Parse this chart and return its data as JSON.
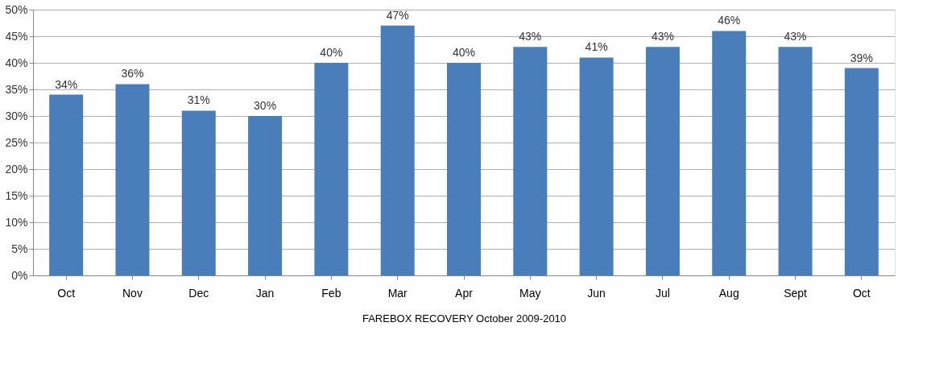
{
  "chart_data": {
    "type": "bar",
    "xlabel": "FAREBOX RECOVERY October 2009-2010",
    "categories": [
      "Oct",
      "Nov",
      "Dec",
      "Jan",
      "Feb",
      "Mar",
      "Apr",
      "May",
      "Jun",
      "Jul",
      "Aug",
      "Sept",
      "Oct"
    ],
    "values": [
      34,
      36,
      31,
      30,
      40,
      47,
      40,
      43,
      41,
      43,
      46,
      43,
      39
    ],
    "value_labels": [
      "34%",
      "36%",
      "31%",
      "30%",
      "40%",
      "47%",
      "40%",
      "43%",
      "41%",
      "43%",
      "46%",
      "43%",
      "39%"
    ],
    "color": "#4a7ebb",
    "ylim": [
      0,
      50
    ],
    "yticks": [
      {
        "value": 0,
        "label": "0%"
      },
      {
        "value": 5,
        "label": "5%"
      },
      {
        "value": 10,
        "label": "10%"
      },
      {
        "value": 15,
        "label": "15%"
      },
      {
        "value": 20,
        "label": "20%"
      },
      {
        "value": 25,
        "label": "25%"
      },
      {
        "value": 30,
        "label": "30%"
      },
      {
        "value": 35,
        "label": "35%"
      },
      {
        "value": 40,
        "label": "40%"
      },
      {
        "value": 45,
        "label": "45%"
      },
      {
        "value": 50,
        "label": "50%"
      }
    ],
    "grid": "y"
  }
}
